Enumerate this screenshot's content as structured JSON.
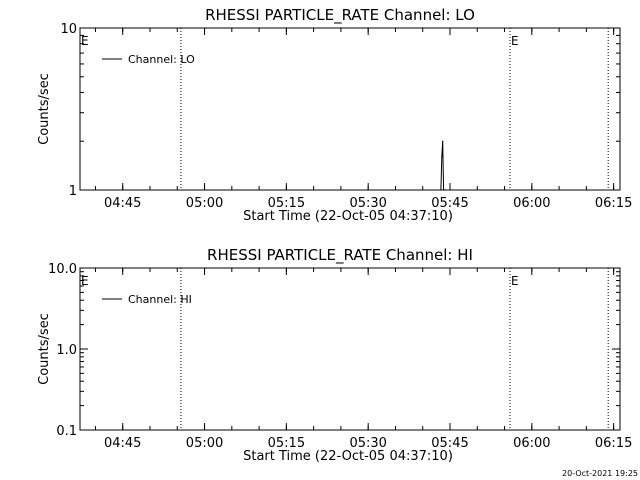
{
  "chart_data": [
    {
      "type": "line",
      "title": "RHESSI PARTICLE_RATE Channel: LO",
      "xlabel": "Start Time (22-Oct-05 04:37:10)",
      "ylabel": "Counts/sec",
      "yscale": "log",
      "ylim": [
        1,
        10
      ],
      "ytick_labels": [
        "1",
        "10"
      ],
      "xlim": [
        "04:37:10",
        "06:16:10"
      ],
      "xtick_labels": [
        "04:45",
        "05:00",
        "05:15",
        "05:30",
        "05:45",
        "06:00",
        "06:15"
      ],
      "vertical_lines": [
        "04:55:40",
        "05:56:00",
        "06:14:00"
      ],
      "markers": [
        {
          "label": "E",
          "time": "04:37:10"
        },
        {
          "label": "E",
          "time": "05:56:00"
        }
      ],
      "legend": {
        "placement": "top-left",
        "entries": [
          "Channel: LO"
        ]
      },
      "series": [
        {
          "name": "Channel: LO",
          "points": [
            [
              "05:43:20",
              1.0
            ],
            [
              "05:43:30",
              1.6
            ],
            [
              "05:43:40",
              2.0
            ],
            [
              "05:43:50",
              1.0
            ],
            [
              "05:44:00",
              1.0
            ],
            [
              "05:44:10",
              1.0
            ]
          ]
        }
      ]
    },
    {
      "type": "line",
      "title": "RHESSI PARTICLE_RATE Channel: HI",
      "xlabel": "Start Time (22-Oct-05 04:37:10)",
      "ylabel": "Counts/sec",
      "yscale": "log",
      "ylim": [
        0.1,
        10
      ],
      "ytick_labels": [
        "0.1",
        "1.0",
        "10.0"
      ],
      "xlim": [
        "04:37:10",
        "06:16:10"
      ],
      "xtick_labels": [
        "04:45",
        "05:00",
        "05:15",
        "05:30",
        "05:45",
        "06:00",
        "06:15"
      ],
      "vertical_lines": [
        "04:55:40",
        "05:56:00",
        "06:14:00"
      ],
      "markers": [
        {
          "label": "E",
          "time": "04:37:10"
        },
        {
          "label": "E",
          "time": "05:56:00"
        }
      ],
      "legend": {
        "placement": "top-left",
        "entries": [
          "Channel: HI"
        ]
      },
      "series": [
        {
          "name": "Channel: HI",
          "points": []
        }
      ]
    }
  ],
  "footer": {
    "timestamp": "20-Oct-2021 19:25"
  }
}
